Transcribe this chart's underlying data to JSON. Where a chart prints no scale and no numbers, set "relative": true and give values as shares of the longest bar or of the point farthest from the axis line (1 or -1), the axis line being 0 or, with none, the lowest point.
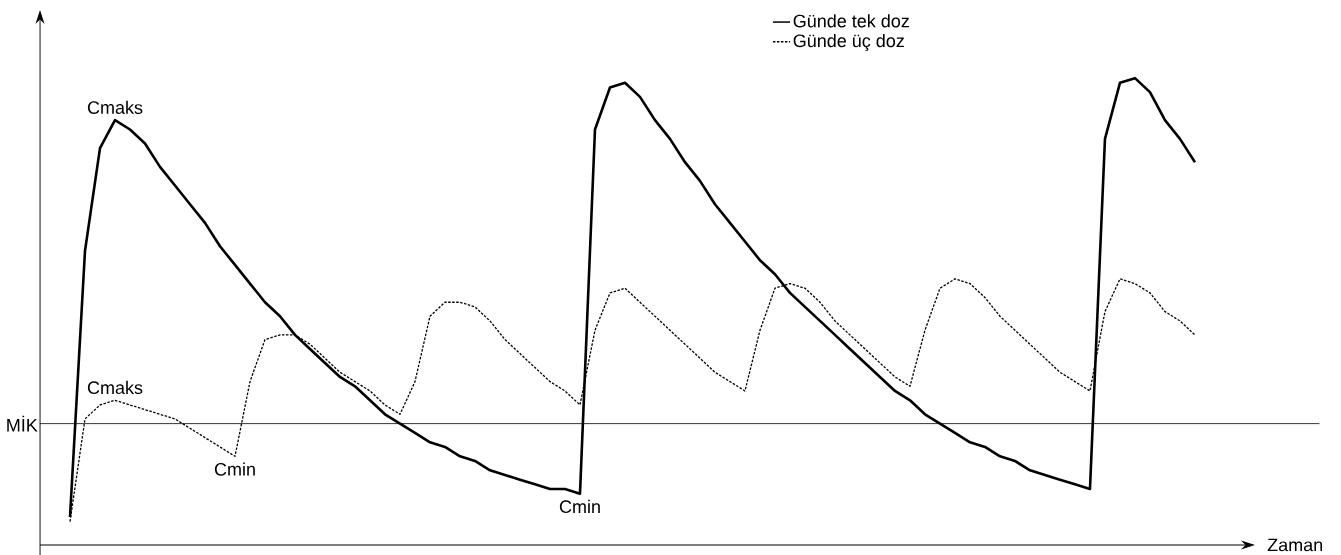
{
  "chart_data": {
    "type": "line",
    "relative": true,
    "xlabel": "Zaman",
    "categories": [
      null,
      null,
      null,
      null,
      null,
      null,
      null,
      null,
      null,
      null,
      null,
      null,
      null,
      null,
      null,
      null,
      null,
      null,
      null,
      null,
      null,
      null,
      null,
      null,
      null,
      null,
      null,
      null,
      null,
      null,
      null,
      null,
      null,
      null,
      null,
      null,
      null,
      null,
      null,
      null,
      null,
      null,
      null,
      null,
      null,
      null,
      null,
      null,
      null,
      null,
      null,
      null,
      null,
      null,
      null,
      null,
      null,
      null,
      null,
      null,
      null,
      null,
      null,
      null,
      null,
      null,
      null,
      null,
      null,
      null,
      null,
      null,
      null,
      null,
      null,
      null
    ],
    "series": [
      {
        "name": "Günde tek doz",
        "color": "#000000",
        "line_style": "solid",
        "values": [
          0.06,
          0.63,
          0.85,
          0.91,
          0.89,
          0.86,
          0.81,
          0.77,
          0.73,
          0.69,
          0.64,
          0.6,
          0.56,
          0.52,
          0.49,
          0.45,
          0.42,
          0.39,
          0.36,
          0.34,
          0.31,
          0.28,
          0.26,
          0.24,
          0.22,
          0.21,
          0.19,
          0.18,
          0.16,
          0.15,
          0.14,
          0.13,
          0.12,
          0.12,
          0.11,
          0.89,
          0.98,
          0.99,
          0.96,
          0.91,
          0.87,
          0.82,
          0.78,
          0.73,
          0.69,
          0.65,
          0.61,
          0.58,
          0.54,
          0.51,
          0.48,
          0.45,
          0.42,
          0.39,
          0.36,
          0.33,
          0.31,
          0.28,
          0.26,
          0.24,
          0.22,
          0.21,
          0.19,
          0.18,
          0.16,
          0.15,
          0.14,
          0.13,
          0.12,
          0.87,
          0.99,
          1.0,
          0.97,
          0.91,
          0.87,
          0.82
        ]
      },
      {
        "name": "Günde üç doz",
        "color": "#000000",
        "line_style": "dotted",
        "values": [
          0.05,
          0.27,
          0.3,
          0.31,
          0.3,
          0.29,
          0.28,
          0.27,
          0.25,
          0.23,
          0.21,
          0.19,
          0.35,
          0.44,
          0.45,
          0.45,
          0.43,
          0.4,
          0.37,
          0.35,
          0.33,
          0.3,
          0.28,
          0.35,
          0.49,
          0.52,
          0.52,
          0.51,
          0.48,
          0.44,
          0.41,
          0.38,
          0.35,
          0.33,
          0.3,
          0.46,
          0.54,
          0.55,
          0.52,
          0.49,
          0.46,
          0.43,
          0.4,
          0.37,
          0.35,
          0.33,
          0.46,
          0.55,
          0.56,
          0.55,
          0.52,
          0.48,
          0.45,
          0.42,
          0.39,
          0.36,
          0.34,
          0.46,
          0.55,
          0.57,
          0.56,
          0.53,
          0.49,
          0.46,
          0.43,
          0.4,
          0.37,
          0.35,
          0.33,
          0.5,
          0.57,
          0.56,
          0.54,
          0.5,
          0.48,
          0.45
        ]
      }
    ],
    "ref_lines": [
      {
        "axis": "y",
        "value": 0.26,
        "label": "MİK",
        "color": "#000000"
      }
    ],
    "annotations": [
      "Cmaks",
      "Cmaks",
      "Cmin",
      "Cmin"
    ],
    "legend": "top right",
    "marker": "none"
  }
}
